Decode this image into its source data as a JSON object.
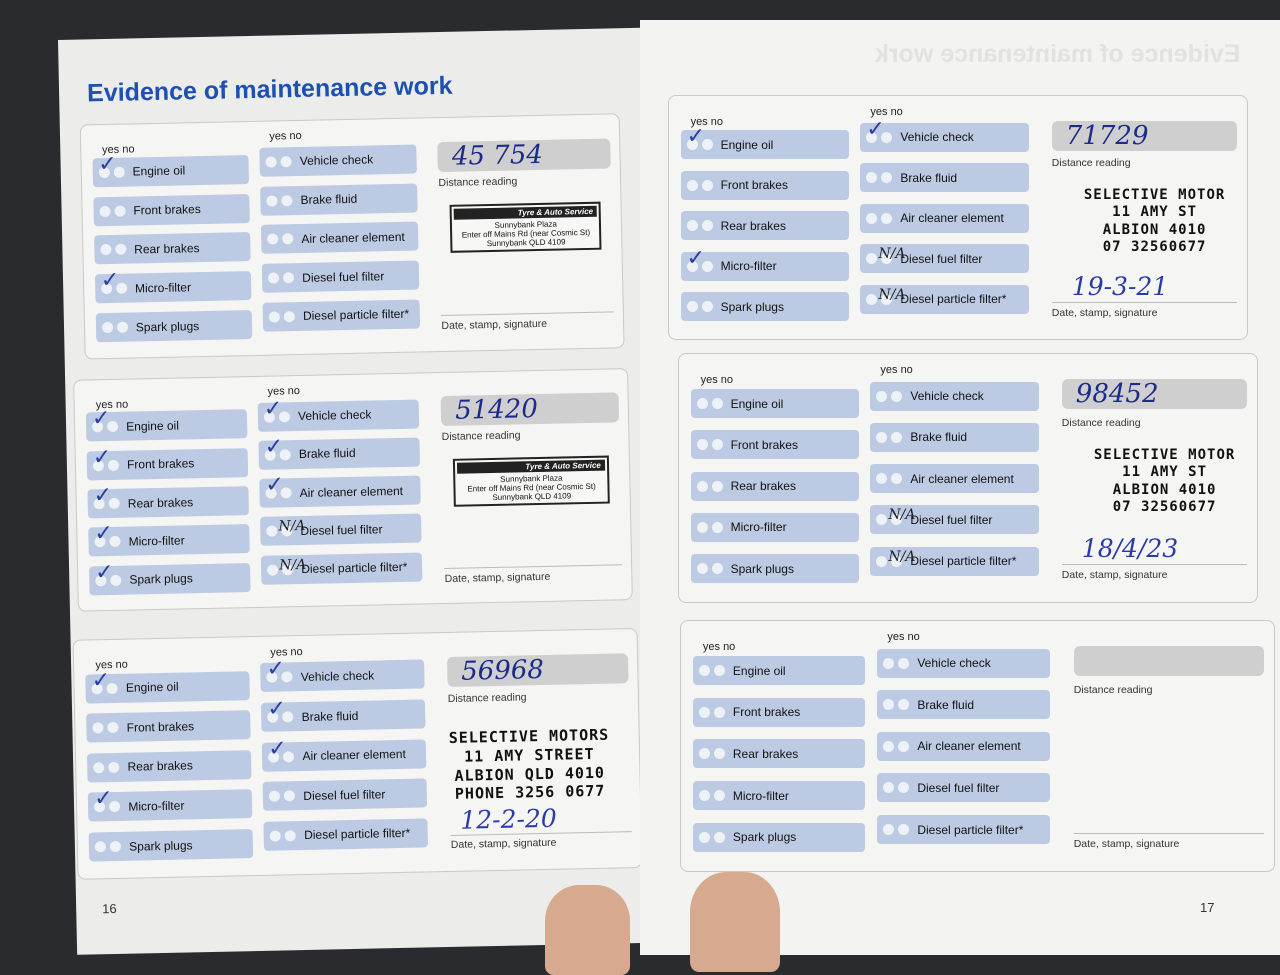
{
  "left_page": {
    "title": "Evidence of maintenance work",
    "page_number": "16"
  },
  "right_page": {
    "ghost_title": "Evidence of maintenance work",
    "page_number": "17"
  },
  "labels": {
    "yes_no": "yes no",
    "distance": "Distance reading",
    "date_stamp": "Date, stamp, signature"
  },
  "left_items": [
    "Engine oil",
    "Front brakes",
    "Rear brakes",
    "Micro-filter",
    "Spark plugs"
  ],
  "right_items": [
    "Vehicle check",
    "Brake fluid",
    "Air cleaner element",
    "Diesel fuel filter",
    "Diesel particle filter*"
  ],
  "kmart_stamp": {
    "brand": "Tyre & Auto Service",
    "lines": [
      "Sunnybank Plaza",
      "Enter off Mains Rd (near Cosmic St)",
      "Sunnybank QLD 4109"
    ]
  },
  "forms": [
    {
      "distance": "45 754",
      "left_marks": [
        "check",
        "",
        "",
        "check",
        ""
      ],
      "right_marks": [
        "",
        "",
        "",
        "",
        ""
      ],
      "stamp": "kmart",
      "date": ""
    },
    {
      "distance": "51420",
      "left_marks": [
        "check",
        "check",
        "check",
        "check",
        "check"
      ],
      "right_marks": [
        "check",
        "check",
        "check",
        "N/A",
        "N/A"
      ],
      "stamp": "kmart",
      "date": ""
    },
    {
      "distance": "56968",
      "left_marks": [
        "check",
        "",
        "",
        "check",
        ""
      ],
      "right_marks": [
        "check",
        "check",
        "check",
        "",
        ""
      ],
      "stamp": "selective_full",
      "stamp_lines": [
        "SELECTIVE MOTORS",
        "11 AMY STREET",
        "ALBION QLD 4010",
        "PHONE 3256 0677"
      ],
      "date": "12-2-20"
    },
    {
      "distance": "71729",
      "left_marks": [
        "check",
        "",
        "",
        "check",
        ""
      ],
      "right_marks": [
        "check",
        "",
        "",
        "N/A",
        "N/A"
      ],
      "stamp": "selective",
      "stamp_lines": [
        "SELECTIVE MOTOR",
        "11 AMY ST",
        "ALBION 4010",
        "07 32560677"
      ],
      "date": "19-3-21"
    },
    {
      "distance": "98452",
      "left_marks": [
        "",
        "",
        "",
        "",
        ""
      ],
      "right_marks": [
        "",
        "",
        "",
        "N/A",
        "N/A"
      ],
      "stamp": "selective",
      "stamp_lines": [
        "SELECTIVE MOTOR",
        "11 AMY ST",
        "ALBION 4010",
        "07 32560677"
      ],
      "date": "18/4/23"
    },
    {
      "distance": "",
      "left_marks": [
        "",
        "",
        "",
        "",
        ""
      ],
      "right_marks": [
        "",
        "",
        "",
        "",
        ""
      ],
      "stamp": "",
      "date": ""
    }
  ],
  "colors": {
    "title": "#1f4fb0",
    "field": "#bccbe3",
    "ink": "#2a3ea0"
  }
}
